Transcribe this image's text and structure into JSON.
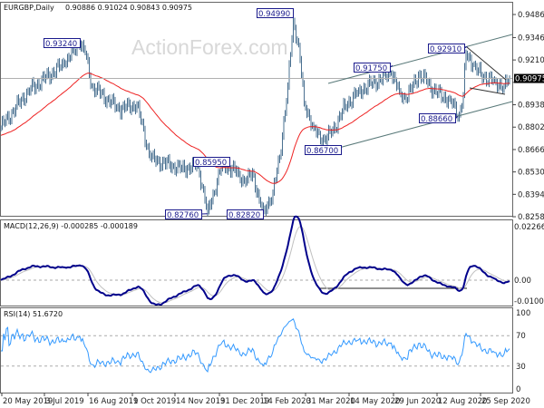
{
  "header": {
    "symbol": "EURGBP,Daily",
    "ohlc": "0.90886 0.91024 0.90843 0.90975"
  },
  "watermark": "ActionForex.com",
  "colors": {
    "bars": "#4a7090",
    "ma": "#ee2222",
    "macd": "#00008b",
    "signal": "#c0c0c0",
    "rsi": "#3399ff",
    "label_border": "#1a1a8c",
    "price_box": "#000000"
  },
  "chart_data": [
    {
      "type": "line",
      "title": "EURGBP,Daily",
      "ylim": [
        0.8258,
        0.9486
      ],
      "y_ticks": [
        "0.94860",
        "0.93460",
        "0.92100",
        "0.90740",
        "0.89380",
        "0.88020",
        "0.86660",
        "0.85300",
        "0.83940",
        "0.82580"
      ],
      "y_tick_values": [
        0.9486,
        0.9346,
        0.921,
        0.9074,
        0.8938,
        0.8802,
        0.8666,
        0.853,
        0.8394,
        0.8258
      ],
      "current_price": {
        "label": "0.90975",
        "value": 0.90975
      },
      "close_waypoints": [
        [
          0,
          0.88
        ],
        [
          20,
          0.902
        ],
        [
          47,
          0.919
        ],
        [
          58,
          0.931
        ],
        [
          62,
          0.925
        ],
        [
          67,
          0.905
        ],
        [
          87,
          0.891
        ],
        [
          100,
          0.894
        ],
        [
          110,
          0.861
        ],
        [
          133,
          0.855
        ],
        [
          145,
          0.857
        ],
        [
          152,
          0.8285
        ],
        [
          163,
          0.858
        ],
        [
          175,
          0.852
        ],
        [
          180,
          0.846
        ],
        [
          185,
          0.853
        ],
        [
          190,
          0.836
        ],
        [
          193,
          0.829
        ],
        [
          200,
          0.84
        ],
        [
          205,
          0.862
        ],
        [
          211,
          0.905
        ],
        [
          215,
          0.945
        ],
        [
          219,
          0.93
        ],
        [
          223,
          0.895
        ],
        [
          230,
          0.88
        ],
        [
          235,
          0.872
        ],
        [
          243,
          0.876
        ],
        [
          253,
          0.893
        ],
        [
          263,
          0.902
        ],
        [
          287,
          0.913
        ],
        [
          293,
          0.902
        ],
        [
          298,
          0.897
        ],
        [
          307,
          0.912
        ],
        [
          313,
          0.908
        ],
        [
          320,
          0.901
        ],
        [
          330,
          0.897
        ],
        [
          337,
          0.8875
        ],
        [
          340,
          0.9
        ],
        [
          342,
          0.925
        ],
        [
          347,
          0.918
        ],
        [
          353,
          0.912
        ],
        [
          363,
          0.908
        ],
        [
          370,
          0.905
        ],
        [
          374,
          0.90975
        ]
      ],
      "annotations": [
        {
          "text": "0.93240",
          "bar": 58,
          "value": 0.9324
        },
        {
          "text": "0.94990",
          "bar": 215,
          "value": 0.9499
        },
        {
          "text": "0.85950",
          "bar": 165,
          "value": 0.8595
        },
        {
          "text": "0.82760",
          "bar": 152,
          "value": 0.8276
        },
        {
          "text": "0.82820",
          "bar": 193,
          "value": 0.8282
        },
        {
          "text": "0.86700",
          "bar": 244,
          "value": 0.867
        },
        {
          "text": "0.91750",
          "bar": 288,
          "value": 0.9175
        },
        {
          "text": "0.92910",
          "bar": 343,
          "value": 0.9291
        },
        {
          "text": "0.88660",
          "bar": 336,
          "value": 0.8866
        }
      ],
      "x_labels": [
        "20 May 2019",
        "3 Jul 2019",
        "16 Aug 2019",
        "1 Oct 2019",
        "14 Nov 2019",
        "31 Dec 2019",
        "14 Feb 2020",
        "31 Mar 2020",
        "14 May 2020",
        "29 Jun 2020",
        "12 Aug 2020",
        "25 Sep 2020"
      ]
    },
    {
      "type": "line",
      "title": "MACD(12,26,9) -0.000285 -0.000189",
      "y_ticks": [
        "0.022662",
        "0.00",
        "-0.010052"
      ],
      "ylim": [
        -0.010052,
        0.022662
      ]
    },
    {
      "type": "line",
      "title": "RSI(14) 51.6720",
      "y_ticks": [
        "100",
        "70",
        "30",
        "0"
      ],
      "ylim": [
        0,
        100
      ]
    }
  ]
}
